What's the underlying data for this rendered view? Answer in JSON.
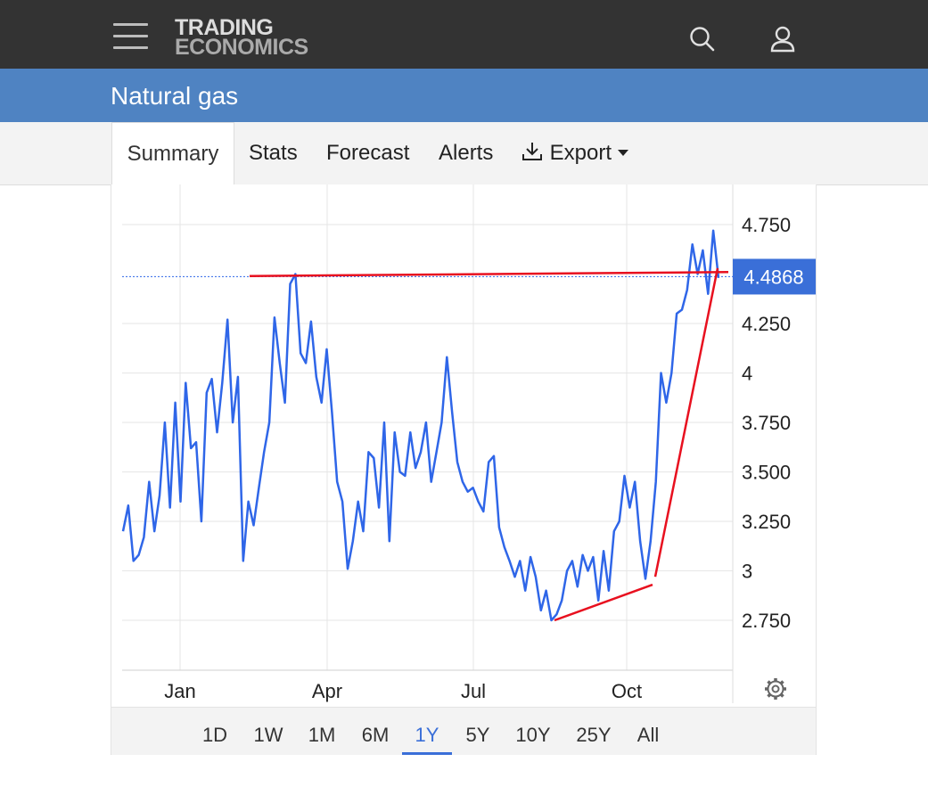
{
  "brand": {
    "line1": "TRADING",
    "line2": "ECONOMICS"
  },
  "header": {
    "title": "Natural gas"
  },
  "tabs": [
    {
      "label": "Summary",
      "active": true
    },
    {
      "label": "Stats"
    },
    {
      "label": "Forecast"
    },
    {
      "label": "Alerts"
    },
    {
      "label": "Export"
    }
  ],
  "ranges": [
    "1D",
    "1W",
    "1M",
    "6M",
    "1Y",
    "5Y",
    "10Y",
    "25Y",
    "All"
  ],
  "active_range": "1Y",
  "colors": {
    "line": "#2f66e8",
    "trend": "#e8101f",
    "accent": "#3a6fd8",
    "header": "#333333",
    "titlebar": "#4f83c2"
  },
  "chart_data": {
    "type": "line",
    "y_ticks": [
      "2.750",
      "3",
      "3.250",
      "3.500",
      "3.750",
      "4",
      "4.250",
      "4.750"
    ],
    "x_ticks": [
      "Jan",
      "Apr",
      "Jul",
      "Oct"
    ],
    "ylim": [
      2.5,
      4.95
    ],
    "grid": true,
    "current_value": "4.4868",
    "current_value_num": 4.4868,
    "series": [
      {
        "values": [
          3.2,
          3.33,
          3.05,
          3.08,
          3.17,
          3.45,
          3.2,
          3.38,
          3.75,
          3.32,
          3.85,
          3.35,
          3.95,
          3.62,
          3.65,
          3.25,
          3.9,
          3.97,
          3.7,
          3.95,
          4.27,
          3.75,
          3.98,
          3.05,
          3.35,
          3.23,
          3.42,
          3.6,
          3.75,
          4.28,
          4.05,
          3.85,
          4.45,
          4.5,
          4.1,
          4.05,
          4.26,
          3.98,
          3.85,
          4.12,
          3.8,
          3.45,
          3.35,
          3.01,
          3.15,
          3.35,
          3.2,
          3.6,
          3.57,
          3.32,
          3.75,
          3.15,
          3.7,
          3.5,
          3.48,
          3.7,
          3.52,
          3.6,
          3.75,
          3.45,
          3.6,
          3.75,
          4.08,
          3.8,
          3.55,
          3.45,
          3.4,
          3.42,
          3.35,
          3.3,
          3.55,
          3.58,
          3.22,
          3.12,
          3.05,
          2.97,
          3.05,
          2.9,
          3.07,
          2.97,
          2.8,
          2.9,
          2.75,
          2.78,
          2.85,
          3.0,
          3.05,
          2.92,
          3.08,
          3.0,
          3.07,
          2.85,
          3.1,
          2.9,
          3.2,
          3.25,
          3.48,
          3.32,
          3.45,
          3.15,
          2.96,
          3.15,
          3.45,
          4.0,
          3.85,
          4.0,
          4.3,
          4.32,
          4.42,
          4.65,
          4.5,
          4.62,
          4.4,
          4.72,
          4.48
        ]
      }
    ]
  }
}
